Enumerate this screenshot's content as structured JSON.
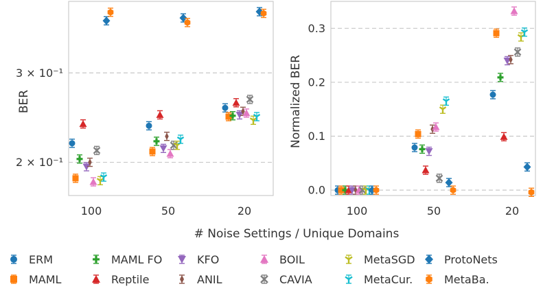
{
  "chart_data": [
    {
      "type": "scatter",
      "panel": "left",
      "xlabel": "",
      "ylabel": "BER",
      "yscale": "log",
      "ylim": [
        0.172,
        0.415
      ],
      "yticks": [
        {
          "value": 0.2,
          "label": "2 × 10⁻¹"
        },
        {
          "value": 0.3,
          "label": "3 × 10⁻¹"
        }
      ],
      "grid": "horizontal dashed",
      "categories": [
        "100",
        "50",
        "20"
      ],
      "series": [
        {
          "name": "ERM",
          "values": [
            0.218,
            0.236,
            0.256
          ]
        },
        {
          "name": "MAML",
          "values": [
            0.186,
            0.21,
            0.246
          ]
        },
        {
          "name": "MAML FO",
          "values": [
            0.203,
            0.22,
            0.247
          ]
        },
        {
          "name": "Reptile",
          "values": [
            0.238,
            0.248,
            0.262
          ]
        },
        {
          "name": "KFO",
          "values": [
            0.196,
            0.213,
            0.248
          ]
        },
        {
          "name": "ANIL",
          "values": [
            0.2,
            0.225,
            0.252
          ]
        },
        {
          "name": "BOIL",
          "values": [
            0.183,
            0.208,
            0.25
          ]
        },
        {
          "name": "CAVIA",
          "values": [
            0.211,
            0.216,
            0.266
          ]
        },
        {
          "name": "MetaSGD",
          "values": [
            0.184,
            0.216,
            0.242
          ]
        },
        {
          "name": "MetaCur.",
          "values": [
            0.187,
            0.222,
            0.246
          ]
        },
        {
          "name": "ProtoNets",
          "values": [
            0.38,
            0.385,
            0.396
          ]
        },
        {
          "name": "MetaBa.",
          "values": [
            0.395,
            0.377,
            0.393
          ]
        }
      ]
    },
    {
      "type": "scatter",
      "panel": "right",
      "xlabel": "",
      "ylabel": "Normalized BER",
      "ylim": [
        -0.01,
        0.35
      ],
      "yticks": [
        0.0,
        0.1,
        0.2,
        0.3
      ],
      "grid": "horizontal dashed",
      "categories": [
        "100",
        "50",
        "20"
      ],
      "series": [
        {
          "name": "ERM",
          "values": [
            0.0,
            0.079,
            0.177
          ]
        },
        {
          "name": "MAML",
          "values": [
            0.0,
            0.104,
            0.291
          ]
        },
        {
          "name": "MAML FO",
          "values": [
            0.0,
            0.076,
            0.209
          ]
        },
        {
          "name": "Reptile",
          "values": [
            0.0,
            0.037,
            0.099
          ]
        },
        {
          "name": "KFO",
          "values": [
            0.0,
            0.072,
            0.24
          ]
        },
        {
          "name": "ANIL",
          "values": [
            0.0,
            0.113,
            0.242
          ]
        },
        {
          "name": "BOIL",
          "values": [
            0.0,
            0.117,
            0.332
          ]
        },
        {
          "name": "CAVIA",
          "values": [
            0.0,
            0.022,
            0.256
          ]
        },
        {
          "name": "MetaSGD",
          "values": [
            0.0,
            0.15,
            0.284
          ]
        },
        {
          "name": "MetaCur.",
          "values": [
            0.0,
            0.165,
            0.293
          ]
        },
        {
          "name": "ProtoNets",
          "values": [
            0.0,
            0.014,
            0.043
          ]
        },
        {
          "name": "MetaBa.",
          "values": [
            0.0,
            0.0,
            -0.004
          ]
        }
      ]
    }
  ],
  "shared_xlabel": "# Noise Settings / Unique Domains",
  "legend": {
    "placement": "bottom",
    "entries": [
      {
        "name": "ERM",
        "color": "#1f77b4",
        "marker": "circle"
      },
      {
        "name": "MAML",
        "color": "#ff7f0e",
        "marker": "square"
      },
      {
        "name": "MAML FO",
        "color": "#2ca02c",
        "marker": "plus"
      },
      {
        "name": "Reptile",
        "color": "#d62728",
        "marker": "triangle-up"
      },
      {
        "name": "KFO",
        "color": "#9467bd",
        "marker": "triangle-down"
      },
      {
        "name": "ANIL",
        "color": "#8c564b",
        "marker": "diamond-thin"
      },
      {
        "name": "BOIL",
        "color": "#e377c2",
        "marker": "triangle-up"
      },
      {
        "name": "CAVIA",
        "color": "#7f7f7f",
        "marker": "x"
      },
      {
        "name": "MetaSGD",
        "color": "#bcbd22",
        "marker": "tri-down"
      },
      {
        "name": "MetaCur.",
        "color": "#17becf",
        "marker": "tri-down"
      },
      {
        "name": "ProtoNets",
        "color": "#1f77b4",
        "marker": "diamond"
      },
      {
        "name": "MetaBa.",
        "color": "#ff7f0e",
        "marker": "hexagon"
      }
    ]
  }
}
